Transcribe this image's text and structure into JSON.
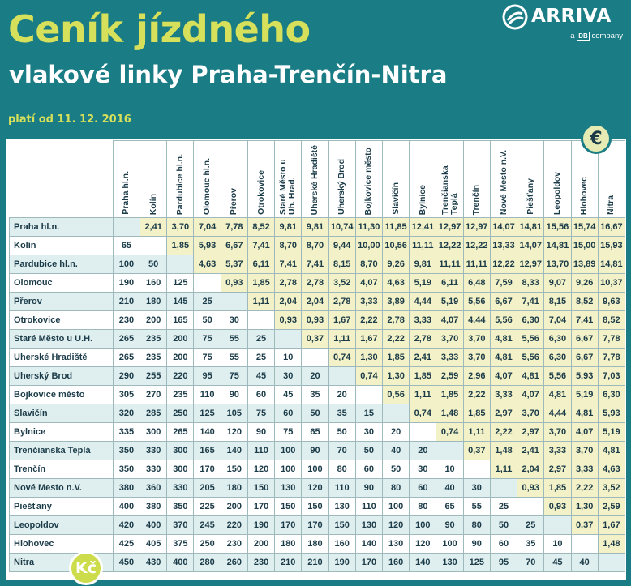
{
  "header": {
    "title_line1": "Ceník jízdného",
    "title_line2": "vlakové linky Praha-Trenčín-Nitra",
    "validity": "platí od 11. 12. 2016"
  },
  "logo": {
    "brand": "ARRIVA",
    "sub_prefix": "a",
    "sub_db": "DB",
    "sub_suffix": "company"
  },
  "badges": {
    "euro": "€",
    "czk": "Kč"
  },
  "colors": {
    "background": "#1a7c84",
    "title_accent": "#d7e05a",
    "price_cell": "#f2f1c8",
    "row_stripe": "#dfeeef"
  },
  "stations_columns": [
    "Praha hl.n.",
    "Kolín",
    "Pardubice hl.n.",
    "Olomouc hl.n.",
    "Přerov",
    "Otrokovice",
    "Staré Město u Uh. Hrad.",
    "Uherské Hradiště",
    "Uherský Brod",
    "Bojkovice město",
    "Slavičín",
    "Bylnice",
    "Trenčianska Teplá",
    "Trenčín",
    "Nové Mesto n.V.",
    "Piešťany",
    "Leopoldov",
    "Hlohovec",
    "Nitra"
  ],
  "rows": [
    {
      "station": "Praha hl.n.",
      "cells": [
        "",
        "2,41",
        "3,70",
        "7,04",
        "7,78",
        "8,52",
        "9,81",
        "9,81",
        "10,74",
        "11,30",
        "11,85",
        "12,41",
        "12,97",
        "12,97",
        "14,07",
        "14,81",
        "15,56",
        "15,74",
        "16,67"
      ]
    },
    {
      "station": "Kolín",
      "cells": [
        "65",
        "",
        "1,85",
        "5,93",
        "6,67",
        "7,41",
        "8,70",
        "8,70",
        "9,44",
        "10,00",
        "10,56",
        "11,11",
        "12,22",
        "12,22",
        "13,33",
        "14,07",
        "14,81",
        "15,00",
        "15,93"
      ]
    },
    {
      "station": "Pardubice hl.n.",
      "cells": [
        "100",
        "50",
        "",
        "4,63",
        "5,37",
        "6,11",
        "7,41",
        "7,41",
        "8,15",
        "8,70",
        "9,26",
        "9,81",
        "11,11",
        "11,11",
        "12,22",
        "12,97",
        "13,70",
        "13,89",
        "14,81"
      ]
    },
    {
      "station": "Olomouc",
      "cells": [
        "190",
        "160",
        "125",
        "",
        "0,93",
        "1,85",
        "2,78",
        "2,78",
        "3,52",
        "4,07",
        "4,63",
        "5,19",
        "6,11",
        "6,48",
        "7,59",
        "8,33",
        "9,07",
        "9,26",
        "10,37"
      ]
    },
    {
      "station": "Přerov",
      "cells": [
        "210",
        "180",
        "145",
        "25",
        "",
        "1,11",
        "2,04",
        "2,04",
        "2,78",
        "3,33",
        "3,89",
        "4,44",
        "5,19",
        "5,56",
        "6,67",
        "7,41",
        "8,15",
        "8,52",
        "9,63"
      ]
    },
    {
      "station": "Otrokovice",
      "cells": [
        "230",
        "200",
        "165",
        "50",
        "30",
        "",
        "0,93",
        "0,93",
        "1,67",
        "2,22",
        "2,78",
        "3,33",
        "4,07",
        "4,44",
        "5,56",
        "6,30",
        "7,04",
        "7,41",
        "8,52"
      ]
    },
    {
      "station": "Staré Město u U.H.",
      "cells": [
        "265",
        "235",
        "200",
        "75",
        "55",
        "25",
        "",
        "0,37",
        "1,11",
        "1,67",
        "2,22",
        "2,78",
        "3,70",
        "3,70",
        "4,81",
        "5,56",
        "6,30",
        "6,67",
        "7,78"
      ]
    },
    {
      "station": "Uherské Hradiště",
      "cells": [
        "265",
        "235",
        "200",
        "75",
        "55",
        "25",
        "10",
        "",
        "0,74",
        "1,30",
        "1,85",
        "2,41",
        "3,33",
        "3,70",
        "4,81",
        "5,56",
        "6,30",
        "6,67",
        "7,78"
      ]
    },
    {
      "station": "Uherský Brod",
      "cells": [
        "290",
        "255",
        "220",
        "95",
        "75",
        "45",
        "30",
        "20",
        "",
        "0,74",
        "1,30",
        "1,85",
        "2,59",
        "2,96",
        "4,07",
        "4,81",
        "5,56",
        "5,93",
        "7,03"
      ]
    },
    {
      "station": "Bojkovice město",
      "cells": [
        "305",
        "270",
        "235",
        "110",
        "90",
        "60",
        "45",
        "35",
        "20",
        "",
        "0,56",
        "1,11",
        "1,85",
        "2,22",
        "3,33",
        "4,07",
        "4,81",
        "5,19",
        "6,30"
      ]
    },
    {
      "station": "Slavičín",
      "cells": [
        "320",
        "285",
        "250",
        "125",
        "105",
        "75",
        "60",
        "50",
        "35",
        "15",
        "",
        "0,74",
        "1,48",
        "1,85",
        "2,97",
        "3,70",
        "4,44",
        "4,81",
        "5,93"
      ]
    },
    {
      "station": "Bylnice",
      "cells": [
        "335",
        "300",
        "265",
        "140",
        "120",
        "90",
        "75",
        "65",
        "50",
        "30",
        "20",
        "",
        "0,74",
        "1,11",
        "2,22",
        "2,97",
        "3,70",
        "4,07",
        "5,19"
      ]
    },
    {
      "station": "Trenčianska Teplá",
      "cells": [
        "350",
        "330",
        "300",
        "165",
        "140",
        "110",
        "100",
        "90",
        "70",
        "50",
        "40",
        "20",
        "",
        "0,37",
        "1,48",
        "2,41",
        "3,33",
        "3,70",
        "4,81"
      ]
    },
    {
      "station": "Trenčín",
      "cells": [
        "350",
        "330",
        "300",
        "170",
        "150",
        "120",
        "100",
        "100",
        "80",
        "60",
        "50",
        "30",
        "10",
        "",
        "1,11",
        "2,04",
        "2,97",
        "3,33",
        "4,63"
      ]
    },
    {
      "station": "Nové Mesto n.V.",
      "cells": [
        "380",
        "360",
        "330",
        "205",
        "180",
        "150",
        "130",
        "120",
        "110",
        "90",
        "80",
        "60",
        "40",
        "30",
        "",
        "0,93",
        "1,85",
        "2,22",
        "3,52"
      ]
    },
    {
      "station": "Piešťany",
      "cells": [
        "400",
        "380",
        "350",
        "225",
        "200",
        "170",
        "150",
        "150",
        "130",
        "110",
        "100",
        "80",
        "65",
        "55",
        "25",
        "",
        "0,93",
        "1,30",
        "2,59"
      ]
    },
    {
      "station": "Leopoldov",
      "cells": [
        "420",
        "400",
        "370",
        "245",
        "220",
        "190",
        "170",
        "170",
        "150",
        "130",
        "120",
        "100",
        "90",
        "80",
        "50",
        "25",
        "",
        "0,37",
        "1,67"
      ]
    },
    {
      "station": "Hlohovec",
      "cells": [
        "425",
        "405",
        "375",
        "250",
        "230",
        "200",
        "180",
        "180",
        "160",
        "140",
        "130",
        "120",
        "100",
        "90",
        "60",
        "35",
        "10",
        "",
        "1,48"
      ]
    },
    {
      "station": "Nitra",
      "cells": [
        "450",
        "430",
        "400",
        "280",
        "260",
        "230",
        "210",
        "210",
        "190",
        "170",
        "160",
        "140",
        "130",
        "125",
        "95",
        "70",
        "45",
        "40",
        ""
      ]
    }
  ]
}
